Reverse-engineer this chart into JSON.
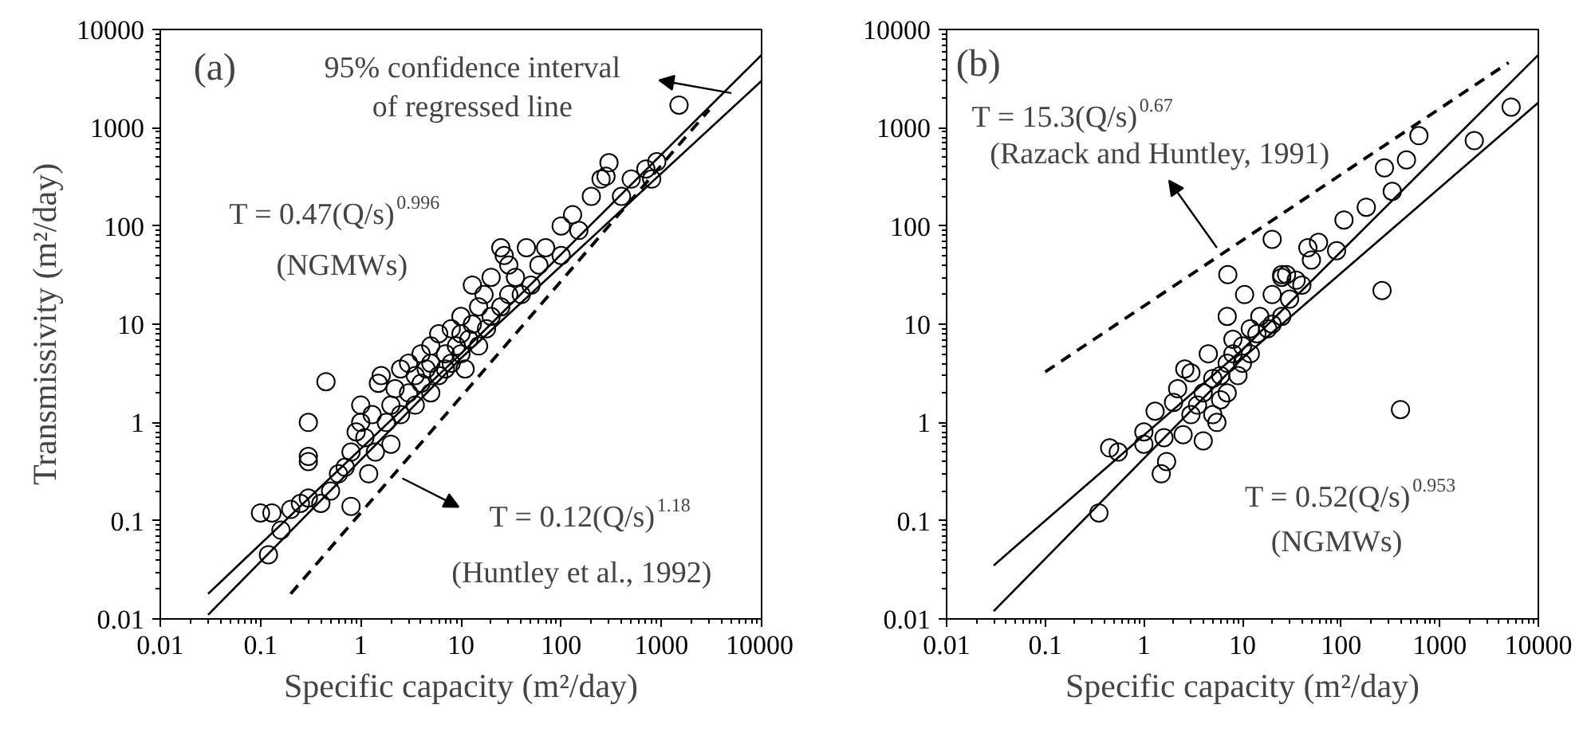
{
  "chart_data": [
    {
      "type": "scatter",
      "log": "xy",
      "marker": "circle",
      "grid": false,
      "xlabel": "Specific capacity (m²/day)",
      "ylabel": "Transmissivity (m²/day)",
      "xlim": [
        0.01,
        10000
      ],
      "ylim": [
        0.01,
        10000
      ],
      "xticks": [
        0.01,
        0.1,
        1,
        10,
        100,
        1000,
        10000
      ],
      "yticks": [
        0.01,
        0.1,
        1,
        10,
        100,
        1000,
        10000
      ],
      "series": [
        {
          "color": "#000000",
          "x": [
            0.1,
            0.13,
            0.12,
            0.16,
            0.2,
            0.25,
            0.3,
            0.3,
            0.3,
            0.3,
            0.45,
            0.4,
            0.5,
            0.6,
            0.7,
            0.8,
            0.8,
            0.9,
            1.0,
            1.0,
            1.1,
            1.2,
            1.3,
            1.4,
            1.5,
            1.6,
            1.8,
            2,
            2,
            2.2,
            2.5,
            2.5,
            3,
            3,
            3.5,
            3.5,
            4,
            4,
            4.5,
            5,
            5,
            5,
            6,
            6,
            7,
            7,
            8,
            8,
            9,
            10,
            10,
            10,
            11,
            12,
            13,
            13,
            15,
            15,
            17,
            18,
            20,
            20,
            25,
            25,
            27,
            30,
            30,
            35,
            40,
            45,
            50,
            60,
            70,
            100,
            100,
            130,
            150,
            200,
            250,
            300,
            280,
            400,
            500,
            700,
            900,
            800,
            1500
          ],
          "values": [
            0.12,
            0.12,
            0.045,
            0.08,
            0.13,
            0.15,
            0.17,
            0.4,
            0.45,
            1.0,
            2.6,
            0.15,
            0.2,
            0.3,
            0.35,
            0.14,
            0.5,
            0.8,
            1.5,
            1.0,
            0.7,
            0.3,
            1.2,
            0.5,
            2.5,
            3.0,
            1.0,
            0.6,
            1.5,
            2.2,
            3.5,
            1.2,
            2,
            4,
            1.5,
            3,
            2.5,
            5,
            3.5,
            2,
            4,
            6,
            3,
            8,
            5,
            3.5,
            4,
            9,
            6,
            5,
            8,
            12,
            3.5,
            7,
            25,
            10,
            6,
            15,
            20,
            9,
            12,
            30,
            15,
            60,
            50,
            40,
            20,
            30,
            20,
            60,
            25,
            40,
            60,
            50,
            100,
            130,
            90,
            200,
            300,
            440,
            320,
            200,
            300,
            380,
            450,
            300,
            1700
          ]
        },
        {
          "type": "line",
          "marker": "none",
          "color": "#000000",
          "line_style": "solid",
          "x": [
            0.03,
            10,
            10000
          ],
          "values": [
            0.018,
            5,
            5500
          ]
        },
        {
          "type": "line",
          "marker": "none",
          "color": "#000000",
          "line_style": "solid",
          "x": [
            0.03,
            10,
            10000
          ],
          "values": [
            0.011,
            4.5,
            3000
          ]
        },
        {
          "type": "line",
          "marker": "none",
          "color": "#000000",
          "line_style": "dashed",
          "x": [
            0.2,
            3000
          ],
          "values": [
            0.018,
            1520
          ]
        }
      ],
      "annotations": [
        "(a)",
        "95% confidence interval",
        "of regressed line",
        "T = 0.47(Q/s)$^{0.996}$",
        "(NGMWs)",
        "T = 0.12(Q/s)$^{1.18}$",
        "(Huntley et al., 1992)"
      ]
    },
    {
      "type": "scatter",
      "log": "xy",
      "marker": "circle",
      "grid": false,
      "xlabel": "Specific capacity (m²/day)",
      "xlim": [
        0.01,
        10000
      ],
      "ylim": [
        0.01,
        10000
      ],
      "xticks": [
        0.01,
        0.1,
        1,
        10,
        100,
        1000,
        10000
      ],
      "yticks": [
        0.01,
        0.1,
        1,
        10,
        100,
        1000,
        10000
      ],
      "series": [
        {
          "color": "#000000",
          "x": [
            0.35,
            0.45,
            0.55,
            1,
            1,
            1.3,
            1.5,
            1.7,
            1.6,
            2,
            2.2,
            2.5,
            2.6,
            3,
            3,
            3.5,
            4,
            4,
            4.5,
            5,
            5,
            5.5,
            6,
            6,
            7,
            7,
            8,
            8,
            9,
            10,
            10,
            12,
            12,
            14,
            15,
            18,
            20,
            20,
            25,
            28,
            30,
            25,
            7.1,
            10.5,
            7,
            20,
            25,
            59,
            107,
            180,
            260,
            275,
            330,
            460,
            615,
            2240,
            5300,
            400,
            46,
            90,
            40,
            50,
            35
          ],
          "values": [
            0.12,
            0.55,
            0.5,
            0.8,
            0.6,
            1.3,
            0.3,
            0.4,
            0.7,
            1.6,
            2.2,
            0.75,
            3.5,
            3.2,
            1.2,
            1.5,
            0.65,
            2,
            5,
            1.2,
            2.8,
            1.0,
            1.7,
            3,
            4,
            2,
            7,
            5,
            3,
            6,
            4,
            9,
            5,
            8,
            12,
            9,
            10,
            20,
            30,
            32,
            18,
            12,
            32,
            20,
            12,
            73,
            32,
            68,
            115,
            155,
            22,
            390,
            225,
            470,
            830,
            740,
            1620,
            1.35,
            60,
            56,
            25,
            45,
            28
          ]
        },
        {
          "type": "line",
          "marker": "none",
          "color": "#000000",
          "line_style": "solid",
          "x": [
            0.03,
            10,
            10000
          ],
          "values": [
            0.035,
            5.5,
            5500
          ]
        },
        {
          "type": "line",
          "marker": "none",
          "color": "#000000",
          "line_style": "solid",
          "x": [
            0.03,
            10,
            10000
          ],
          "values": [
            0.012,
            4.5,
            1800
          ]
        },
        {
          "type": "line",
          "marker": "none",
          "color": "#000000",
          "line_style": "dashed",
          "x": [
            0.1,
            5000
          ],
          "values": [
            3.27,
            4600
          ]
        }
      ],
      "annotations": [
        "(b)",
        "T = 15.3(Q/s)$^{0.67}$",
        "(Razack and Huntley, 1991)",
        "T = 0.52(Q/s)$^{0.953}$",
        "(NGMWs)"
      ]
    }
  ]
}
